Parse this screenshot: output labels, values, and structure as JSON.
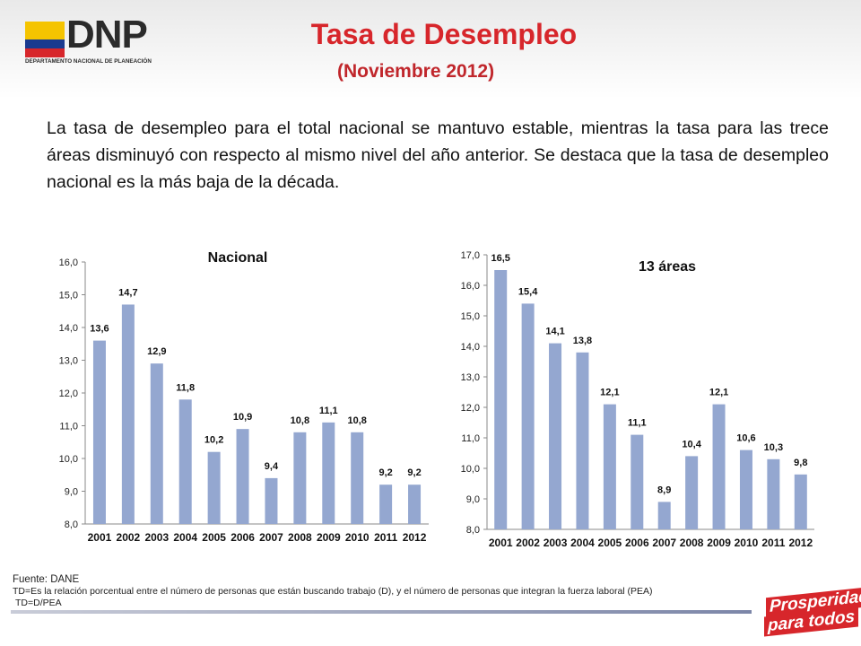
{
  "header": {
    "logo_text": "DNP",
    "logo_subtext": "DEPARTAMENTO NACIONAL DE PLANEACIÓN",
    "title": "Tasa de Desempleo",
    "subtitle": "(Noviembre 2012)"
  },
  "intro_text": "La tasa de desempleo para el total nacional se mantuvo estable, mientras la tasa para las trece áreas disminuyó con respecto al mismo nivel del año anterior. Se destaca que la tasa de desempleo nacional es la más baja de la década.",
  "colors": {
    "bar": "#94a7d0",
    "title": "#d7262b",
    "axis": "#8a8a8a"
  },
  "chart_data": [
    {
      "type": "bar",
      "title": "Nacional",
      "categories": [
        "2001",
        "2002",
        "2003",
        "2004",
        "2005",
        "2006",
        "2007",
        "2008",
        "2009",
        "2010",
        "2011",
        "2012"
      ],
      "values": [
        13.6,
        14.7,
        12.9,
        11.8,
        10.2,
        10.9,
        9.4,
        10.8,
        11.1,
        10.8,
        9.2,
        9.2
      ],
      "value_labels": [
        "13,6",
        "14,7",
        "12,9",
        "11,8",
        "10,2",
        "10,9",
        "9,4",
        "10,8",
        "11,1",
        "10,8",
        "9,2",
        "9,2"
      ],
      "ylim": [
        8,
        16
      ],
      "yticks": [
        "8,0",
        "9,0",
        "10,0",
        "11,0",
        "12,0",
        "13,0",
        "14,0",
        "15,0",
        "16,0"
      ],
      "grid": false,
      "legend": "none"
    },
    {
      "type": "bar",
      "title": "13 áreas",
      "categories": [
        "2001",
        "2002",
        "2003",
        "2004",
        "2005",
        "2006",
        "2007",
        "2008",
        "2009",
        "2010",
        "2011",
        "2012"
      ],
      "values": [
        16.5,
        15.4,
        14.1,
        13.8,
        12.1,
        11.1,
        8.9,
        10.4,
        12.1,
        10.6,
        10.3,
        9.8
      ],
      "value_labels": [
        "16,5",
        "15,4",
        "14,1",
        "13,8",
        "12,1",
        "11,1",
        "8,9",
        "10,4",
        "12,1",
        "10,6",
        "10,3",
        "9,8"
      ],
      "ylim": [
        8,
        17
      ],
      "yticks": [
        "8,0",
        "9,0",
        "10,0",
        "11,0",
        "12,0",
        "13,0",
        "14,0",
        "15,0",
        "16,0",
        "17,0"
      ],
      "grid": false,
      "legend": "none"
    }
  ],
  "footer": {
    "source": "Fuente: DANE",
    "definition": "TD=Es la relación porcentual entre el número de personas que están buscando trabajo (D), y el número de personas que integran la fuerza laboral (PEA)",
    "formula": "TD=D/PEA"
  },
  "brand": {
    "line1": "Prosperidad",
    "line2": "para todos"
  }
}
